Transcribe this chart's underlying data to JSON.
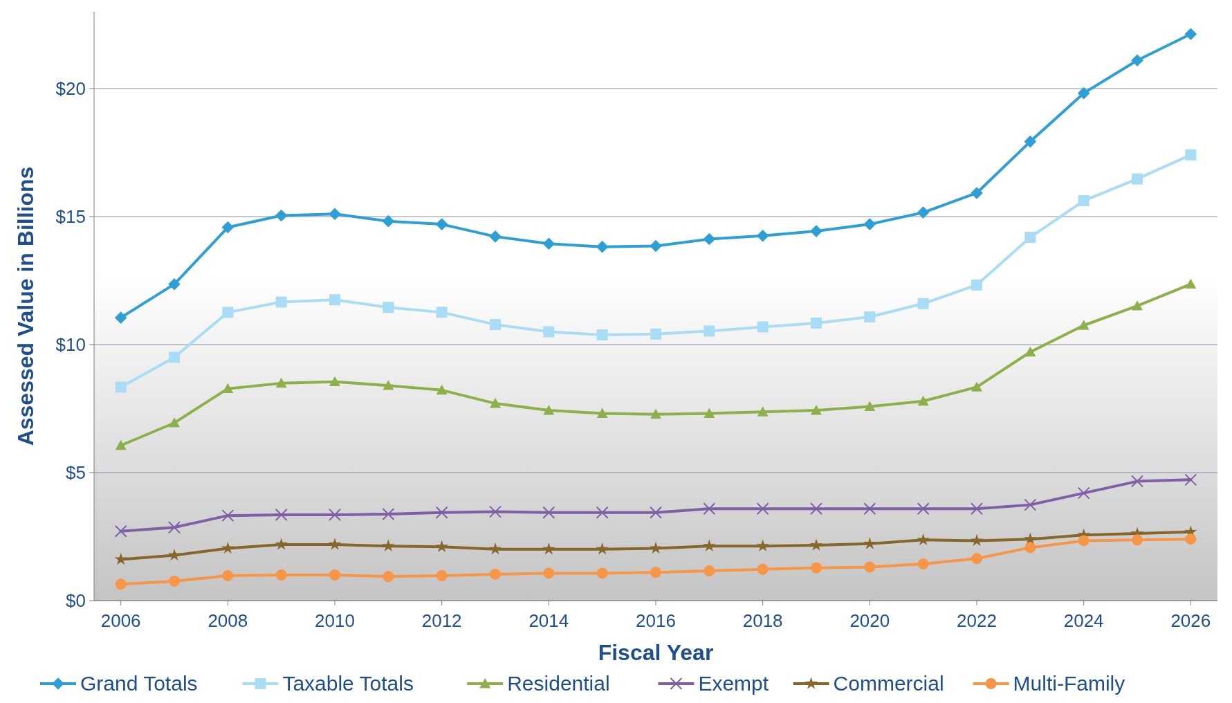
{
  "chart_data": {
    "type": "line",
    "xlabel": "Fiscal Year",
    "ylabel": "Assessed Value in Billions",
    "x": [
      2006,
      2007,
      2008,
      2009,
      2010,
      2011,
      2012,
      2013,
      2014,
      2015,
      2016,
      2017,
      2018,
      2019,
      2020,
      2021,
      2022,
      2023,
      2024,
      2025,
      2026
    ],
    "xlim": [
      2005.5,
      2026.5
    ],
    "xticks": [
      2006,
      2008,
      2010,
      2012,
      2014,
      2016,
      2018,
      2020,
      2022,
      2024,
      2026
    ],
    "ylim": [
      0,
      23
    ],
    "yticks": [
      {
        "value": 0,
        "label": "$0"
      },
      {
        "value": 5,
        "label": "$5"
      },
      {
        "value": 10,
        "label": "$10"
      },
      {
        "value": 15,
        "label": "$15"
      },
      {
        "value": 20,
        "label": "$20"
      }
    ],
    "grid": "y",
    "legend": "bottom",
    "line_style": "solid",
    "series": [
      {
        "name": "Grand Totals",
        "color": "#2e9fd6",
        "marker": "diamond",
        "values": [
          11.05,
          12.36,
          14.58,
          15.04,
          15.1,
          14.82,
          14.7,
          14.22,
          13.94,
          13.82,
          13.85,
          14.12,
          14.25,
          14.43,
          14.7,
          15.16,
          15.92,
          17.93,
          19.82,
          21.1,
          22.13
        ]
      },
      {
        "name": "Taxable Totals",
        "color": "#a9dcf5",
        "marker": "square",
        "values": [
          8.34,
          9.5,
          11.26,
          11.66,
          11.75,
          11.45,
          11.26,
          10.78,
          10.5,
          10.38,
          10.41,
          10.53,
          10.69,
          10.84,
          11.08,
          11.6,
          12.33,
          14.19,
          15.62,
          16.47,
          17.41
        ]
      },
      {
        "name": "Residential",
        "color": "#8db04a",
        "marker": "triangle",
        "values": [
          6.06,
          6.94,
          8.28,
          8.49,
          8.55,
          8.4,
          8.22,
          7.7,
          7.43,
          7.31,
          7.28,
          7.31,
          7.37,
          7.43,
          7.58,
          7.79,
          8.34,
          9.71,
          10.75,
          11.51,
          12.36
        ]
      },
      {
        "name": "Exempt",
        "color": "#7f5fa5",
        "marker": "cross",
        "values": [
          2.71,
          2.86,
          3.32,
          3.35,
          3.35,
          3.38,
          3.44,
          3.47,
          3.44,
          3.44,
          3.44,
          3.59,
          3.59,
          3.59,
          3.59,
          3.59,
          3.59,
          3.74,
          4.2,
          4.66,
          4.72
        ]
      },
      {
        "name": "Commercial",
        "color": "#86662a",
        "marker": "star",
        "values": [
          1.61,
          1.77,
          2.04,
          2.19,
          2.19,
          2.13,
          2.1,
          2.01,
          2.01,
          2.01,
          2.04,
          2.13,
          2.13,
          2.16,
          2.22,
          2.37,
          2.34,
          2.4,
          2.56,
          2.62,
          2.68
        ]
      },
      {
        "name": "Multi-Family",
        "color": "#f79646",
        "marker": "circle",
        "values": [
          0.64,
          0.76,
          0.97,
          1.0,
          1.0,
          0.94,
          0.97,
          1.03,
          1.07,
          1.07,
          1.1,
          1.16,
          1.22,
          1.28,
          1.31,
          1.43,
          1.64,
          2.07,
          2.34,
          2.37,
          2.4
        ]
      }
    ]
  }
}
